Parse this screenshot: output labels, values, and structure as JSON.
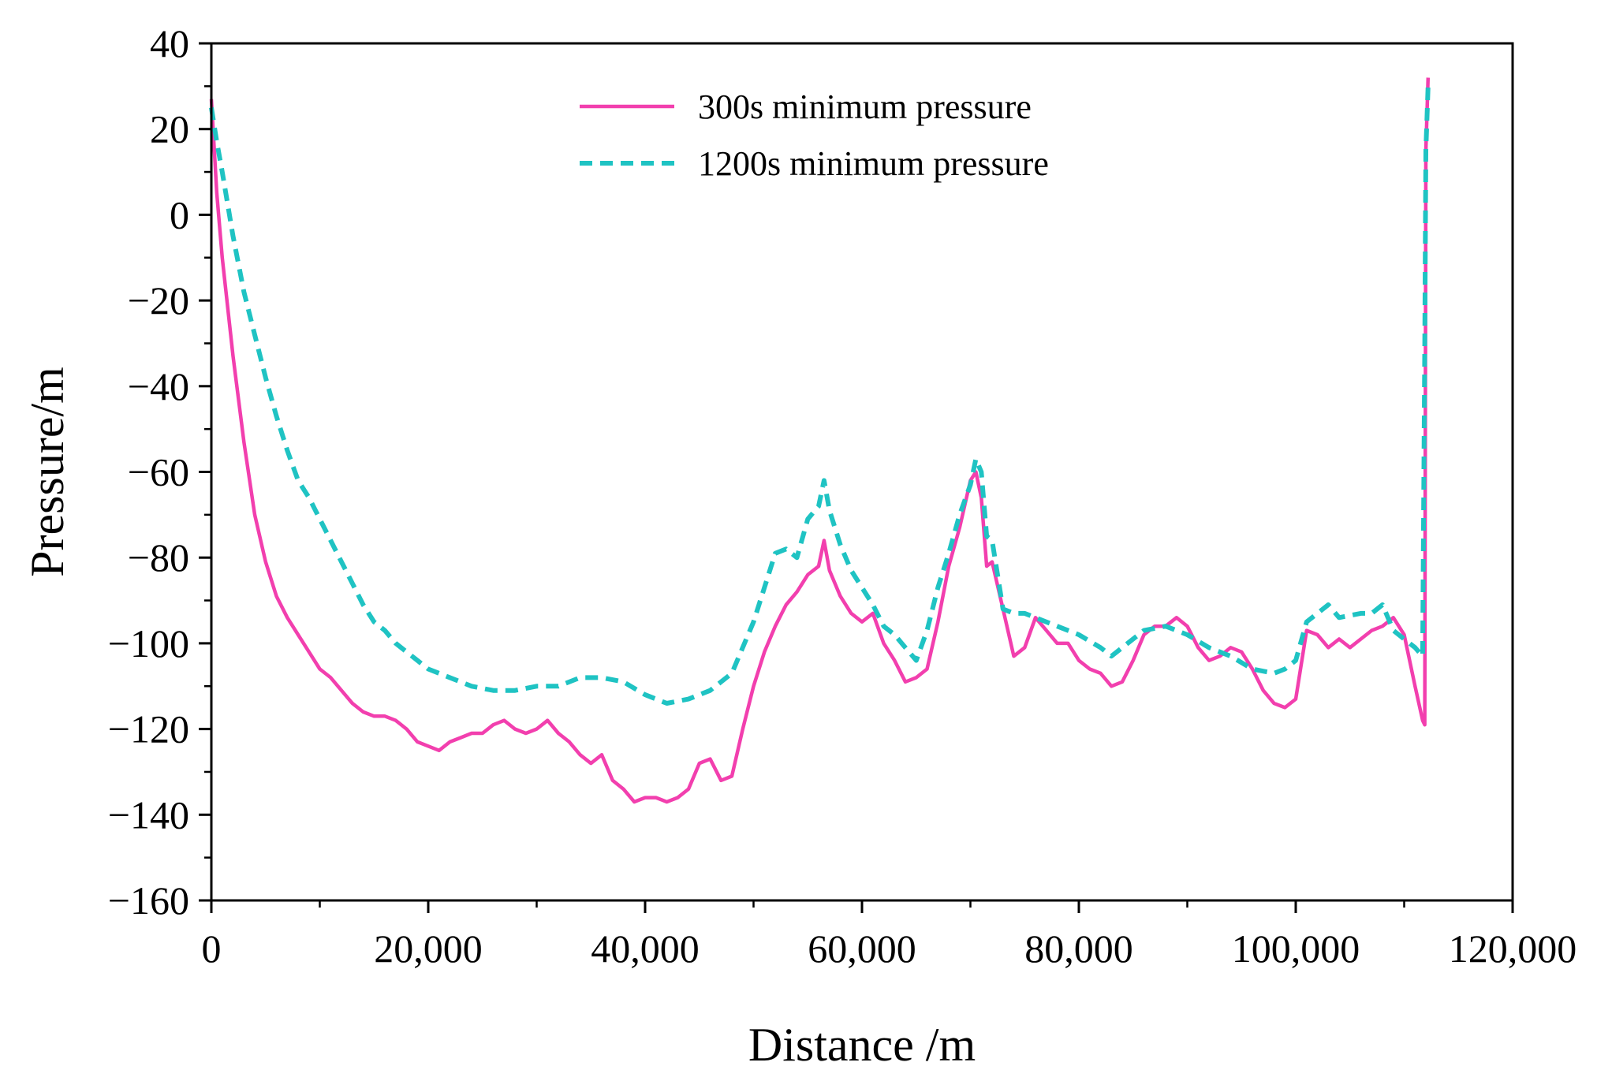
{
  "chart_data": {
    "type": "line",
    "xlabel": "Distance /m",
    "ylabel": "Pressure/m",
    "xlim": [
      0,
      120000
    ],
    "ylim": [
      -160,
      40
    ],
    "xticks": [
      0,
      20000,
      40000,
      60000,
      80000,
      100000,
      120000
    ],
    "xtick_labels": [
      "0",
      "20,000",
      "40,000",
      "60,000",
      "80,000",
      "100,000",
      "120,000"
    ],
    "yticks": [
      40,
      20,
      0,
      -20,
      -40,
      -60,
      -80,
      -100,
      -120,
      -140,
      -160
    ],
    "ytick_labels": [
      "40",
      "20",
      "0",
      "−20",
      "−40",
      "−60",
      "−80",
      "−100",
      "−120",
      "−140",
      "−160"
    ],
    "grid": false,
    "legend_position": "top-center",
    "series": [
      {
        "name": "300s minimum pressure",
        "color": "#f23fae",
        "style": "solid",
        "x": [
          0,
          500,
          1000,
          2000,
          3000,
          4000,
          5000,
          6000,
          7000,
          8000,
          9000,
          10000,
          11000,
          12000,
          13000,
          14000,
          15000,
          16000,
          17000,
          18000,
          19000,
          20000,
          21000,
          22000,
          23000,
          24000,
          25000,
          26000,
          27000,
          28000,
          29000,
          30000,
          31000,
          32000,
          33000,
          34000,
          35000,
          36000,
          37000,
          38000,
          39000,
          40000,
          41000,
          42000,
          43000,
          44000,
          45000,
          46000,
          47000,
          48000,
          49000,
          50000,
          51000,
          52000,
          53000,
          54000,
          55000,
          56000,
          56500,
          57000,
          58000,
          59000,
          60000,
          61000,
          62000,
          63000,
          64000,
          65000,
          66000,
          67000,
          68000,
          69000,
          70000,
          70500,
          71000,
          71500,
          72000,
          73000,
          74000,
          75000,
          76000,
          77000,
          78000,
          79000,
          80000,
          81000,
          82000,
          83000,
          84000,
          85000,
          86000,
          87000,
          88000,
          89000,
          90000,
          91000,
          92000,
          93000,
          94000,
          95000,
          96000,
          97000,
          98000,
          99000,
          100000,
          101000,
          102000,
          103000,
          104000,
          105000,
          106000,
          107000,
          108000,
          109000,
          110000,
          111000,
          111700,
          111900,
          112000,
          112200
        ],
        "y": [
          27,
          5,
          -10,
          -33,
          -53,
          -70,
          -81,
          -89,
          -94,
          -98,
          -102,
          -106,
          -108,
          -111,
          -114,
          -116,
          -117,
          -117,
          -118,
          -120,
          -123,
          -124,
          -125,
          -123,
          -122,
          -121,
          -121,
          -119,
          -118,
          -120,
          -121,
          -120,
          -118,
          -121,
          -123,
          -126,
          -128,
          -126,
          -132,
          -134,
          -137,
          -136,
          -136,
          -137,
          -136,
          -134,
          -128,
          -127,
          -132,
          -131,
          -120,
          -110,
          -102,
          -96,
          -91,
          -88,
          -84,
          -82,
          -76,
          -83,
          -89,
          -93,
          -95,
          -93,
          -100,
          -104,
          -109,
          -108,
          -106,
          -95,
          -82,
          -73,
          -62,
          -60,
          -66,
          -82,
          -81,
          -92,
          -103,
          -101,
          -94,
          -97,
          -100,
          -100,
          -104,
          -106,
          -107,
          -110,
          -109,
          -104,
          -98,
          -96,
          -96,
          -94,
          -96,
          -101,
          -104,
          -103,
          -101,
          -102,
          -106,
          -111,
          -114,
          -115,
          -113,
          -97,
          -98,
          -101,
          -99,
          -101,
          -99,
          -97,
          -96,
          -94,
          -98,
          -110,
          -118,
          -119,
          15,
          32
        ]
      },
      {
        "name": "1200s minimum pressure",
        "color": "#1fc3c3",
        "style": "dashed",
        "x": [
          0,
          500,
          1000,
          2000,
          3000,
          4000,
          5000,
          6000,
          7000,
          8000,
          9000,
          10000,
          11000,
          12000,
          13000,
          14000,
          15000,
          16000,
          17000,
          18000,
          19000,
          20000,
          22000,
          24000,
          26000,
          28000,
          30000,
          32000,
          34000,
          36000,
          38000,
          40000,
          42000,
          44000,
          46000,
          48000,
          50000,
          51000,
          52000,
          53000,
          54000,
          55000,
          56000,
          56500,
          57000,
          58000,
          59000,
          60000,
          61000,
          62000,
          63000,
          64000,
          65000,
          66000,
          67000,
          68000,
          69000,
          70000,
          70500,
          71000,
          71500,
          72000,
          73000,
          74000,
          75000,
          76000,
          78000,
          80000,
          82000,
          83000,
          84000,
          86000,
          88000,
          90000,
          92000,
          94000,
          96000,
          98000,
          99000,
          100000,
          101000,
          102000,
          103000,
          104000,
          106000,
          107000,
          108000,
          109000,
          110000,
          111000,
          111700,
          111900,
          112000,
          112200
        ],
        "y": [
          25,
          17,
          10,
          -5,
          -18,
          -28,
          -38,
          -47,
          -55,
          -62,
          -66,
          -71,
          -76,
          -81,
          -86,
          -91,
          -95,
          -97,
          -100,
          -102,
          -104,
          -106,
          -108,
          -110,
          -111,
          -111,
          -110,
          -110,
          -108,
          -108,
          -109,
          -112,
          -114,
          -113,
          -111,
          -107,
          -95,
          -87,
          -79,
          -78,
          -80,
          -71,
          -68,
          -62,
          -69,
          -77,
          -83,
          -87,
          -91,
          -96,
          -98,
          -101,
          -104,
          -97,
          -87,
          -79,
          -70,
          -63,
          -57,
          -60,
          -75,
          -76,
          -92,
          -93,
          -93,
          -94,
          -96,
          -98,
          -101,
          -103,
          -101,
          -97,
          -96,
          -98,
          -101,
          -103,
          -106,
          -107,
          -106,
          -104,
          -95,
          -93,
          -91,
          -94,
          -93,
          -93,
          -91,
          -97,
          -99,
          -101,
          -103,
          -30,
          15,
          30
        ]
      }
    ]
  }
}
